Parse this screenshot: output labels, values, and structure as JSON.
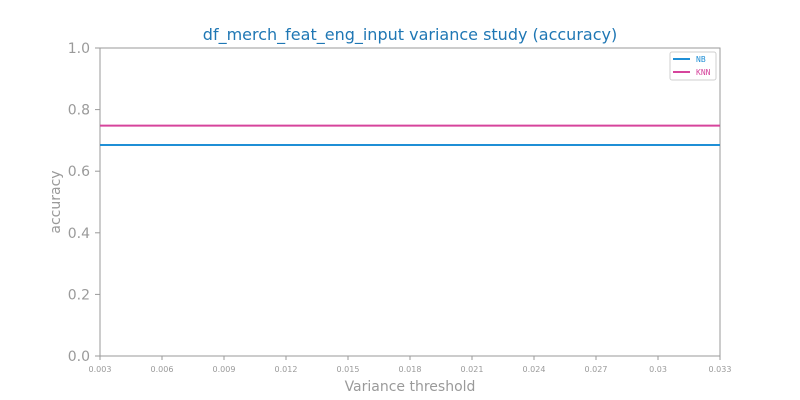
{
  "chart_data": {
    "type": "line",
    "title": "df_merch_feat_eng_input variance study (accuracy)",
    "xlabel": "Variance threshold",
    "ylabel": "accuracy",
    "x": [
      0.003,
      0.006,
      0.009,
      0.012,
      0.015,
      0.018,
      0.021,
      0.024,
      0.027,
      0.03,
      0.033
    ],
    "x_tick_labels": [
      "0.003",
      "0.006",
      "0.009",
      "0.012",
      "0.015",
      "0.018",
      "0.021",
      "0.024",
      "0.027",
      "0.03",
      "0.033"
    ],
    "xlim": [
      0.003,
      0.033
    ],
    "ylim": [
      0.0,
      1.0
    ],
    "y_ticks": [
      0.0,
      0.2,
      0.4,
      0.6,
      0.8,
      1.0
    ],
    "y_tick_labels": [
      "0.0",
      "0.2",
      "0.4",
      "0.6",
      "0.8",
      "1.0"
    ],
    "series": [
      {
        "name": "NB",
        "color": "#1f8fd6",
        "values": [
          0.685,
          0.685,
          0.685,
          0.685,
          0.685,
          0.685,
          0.685,
          0.685,
          0.685,
          0.685,
          0.685
        ]
      },
      {
        "name": "KNN",
        "color": "#d6449c",
        "values": [
          0.748,
          0.748,
          0.748,
          0.748,
          0.748,
          0.748,
          0.748,
          0.748,
          0.748,
          0.748,
          0.748
        ]
      }
    ],
    "grid": false,
    "legend_position": "top-right"
  }
}
